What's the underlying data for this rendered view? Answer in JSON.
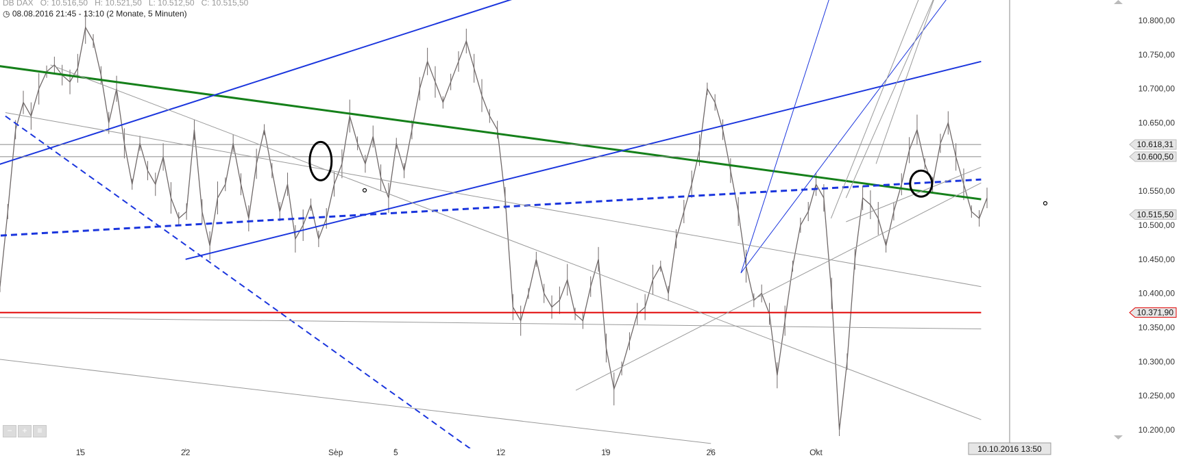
{
  "header": {
    "symbol": "DB DAX",
    "open": "O: 10.516,50",
    "high": "H: 10.521,50",
    "low": "L: 10.512,50",
    "close": "C: 10.515,50",
    "range": "08.08.2016 21:45 - 13:10 (2 Monate, 5 Minuten)"
  },
  "controls": {
    "zoom_out": "−",
    "zoom_in": "+",
    "zoom_menu": "≡"
  },
  "chart_data": {
    "type": "line",
    "title": "",
    "xlabel": "",
    "ylabel": "",
    "y_axis_labels": [
      "10.800,00",
      "10.750,00",
      "10.700,00",
      "10.650,00",
      "10.600,00",
      "10.550,00",
      "10.500,00",
      "10.450,00",
      "10.400,00",
      "10.350,00",
      "10.300,00",
      "10.250,00",
      "10.200,00"
    ],
    "y_axis_values": [
      10800,
      10750,
      10700,
      10650,
      10600,
      10550,
      10500,
      10450,
      10400,
      10350,
      10300,
      10250,
      10200
    ],
    "ylim": [
      10182,
      10827
    ],
    "x_axis_labels": [
      "15",
      "22",
      "Sep",
      "5",
      "12",
      "19",
      "26",
      "Okt"
    ],
    "x_axis_dates": [
      "2016-08-15",
      "2016-08-22",
      "2016-09-01",
      "2016-09-05",
      "2016-09-12",
      "2016-09-19",
      "2016-09-26",
      "2016-10-03"
    ],
    "grid": false,
    "crosshair_label": "10.10.2016 13:50",
    "price_markers": [
      {
        "label": "10.618,31",
        "value": 10618.31,
        "color": "#777777"
      },
      {
        "label": "10.600,50",
        "value": 10600.5,
        "color": "#777777"
      },
      {
        "label": "10.515,50",
        "value": 10515.5,
        "color": "#aaaaaa"
      },
      {
        "label": "10.371,90",
        "value": 10371.9,
        "color": "#e00000"
      }
    ],
    "series": [
      {
        "values": [
          10410,
          10520,
          10640,
          10680,
          10660,
          10700,
          10725,
          10735,
          10720,
          10710,
          10730,
          10790,
          10770,
          10720,
          10650,
          10700,
          10620,
          10560,
          10620,
          10580,
          10560,
          10600,
          10540,
          10510,
          10520,
          10640,
          10520,
          10470,
          10540,
          10560,
          10620,
          10560,
          10510,
          10590,
          10640,
          10580,
          10520,
          10560,
          10480,
          10500,
          10530,
          10480,
          10510,
          10560,
          10590,
          10660,
          10620,
          10590,
          10630,
          10570,
          10540,
          10620,
          10580,
          10640,
          10700,
          10740,
          10710,
          10680,
          10710,
          10740,
          10770,
          10730,
          10690,
          10660,
          10640,
          10540,
          10380,
          10360,
          10400,
          10450,
          10400,
          10380,
          10390,
          10420,
          10370,
          10360,
          10410,
          10450,
          10320,
          10260,
          10290,
          10330,
          10370,
          10380,
          10420,
          10440,
          10400,
          10480,
          10520,
          10560,
          10610,
          10700,
          10680,
          10640,
          10580,
          10520,
          10440,
          10390,
          10400,
          10370,
          10280,
          10360,
          10440,
          10500,
          10520,
          10560,
          10540,
          10400,
          10200,
          10300,
          10450,
          10540,
          10530,
          10510,
          10470,
          10520,
          10560,
          10610,
          10640,
          10590,
          10560,
          10620,
          10650,
          10600,
          10560,
          10520,
          10510,
          10540
        ]
      }
    ],
    "trendlines": [
      {
        "name": "green-resistance",
        "color": "#15801a",
        "style": "solid",
        "width": 3,
        "points": [
          [
            "2016-08-09",
            10735
          ],
          [
            "2016-10-14",
            10538
          ]
        ]
      },
      {
        "name": "blue-dashed-support",
        "color": "#1a35dd",
        "style": "dashed",
        "width": 3,
        "points": [
          [
            "2016-08-09",
            10484
          ],
          [
            "2016-10-14",
            10567
          ]
        ]
      },
      {
        "name": "blue-dashed-falling",
        "color": "#1a35dd",
        "style": "dashed",
        "width": 2,
        "points": [
          [
            "2016-08-10",
            10660
          ],
          [
            "2016-09-10",
            10172
          ]
        ]
      },
      {
        "name": "blue-channel-upper",
        "color": "#1a35dd",
        "style": "solid",
        "width": 2,
        "points": [
          [
            "2016-08-09",
            10585
          ],
          [
            "2016-09-14",
            10840
          ]
        ]
      },
      {
        "name": "blue-channel-lower",
        "color": "#1a35dd",
        "style": "solid",
        "width": 2,
        "points": [
          [
            "2016-08-22",
            10450
          ],
          [
            "2016-10-14",
            10740
          ]
        ]
      },
      {
        "name": "blue-steep-1",
        "color": "#1a35dd",
        "style": "solid",
        "width": 1,
        "points": [
          [
            "2016-09-28",
            10430
          ],
          [
            "2016-10-04",
            10840
          ]
        ]
      },
      {
        "name": "blue-steep-2",
        "color": "#1a35dd",
        "style": "solid",
        "width": 1,
        "points": [
          [
            "2016-09-28",
            10430
          ],
          [
            "2016-10-12",
            10840
          ]
        ]
      },
      {
        "name": "horizontal-red",
        "color": "#e00000",
        "style": "solid",
        "width": 2,
        "points": [
          [
            "2016-08-09",
            10371.9
          ],
          [
            "2016-10-14",
            10371.9
          ]
        ]
      },
      {
        "name": "horizontal-gray-1",
        "color": "#888888",
        "style": "solid",
        "width": 1,
        "points": [
          [
            "2016-08-09",
            10618.31
          ],
          [
            "2016-10-14",
            10618.31
          ]
        ]
      },
      {
        "name": "horizontal-gray-2",
        "color": "#888888",
        "style": "solid",
        "width": 1,
        "points": [
          [
            "2016-08-09",
            10600.5
          ],
          [
            "2016-10-14",
            10600.5
          ]
        ]
      },
      {
        "name": "gray-falling-1",
        "color": "#999999",
        "style": "solid",
        "width": 1,
        "points": [
          [
            "2016-08-10",
            10665
          ],
          [
            "2016-10-14",
            10410
          ]
        ]
      },
      {
        "name": "gray-falling-2",
        "color": "#999999",
        "style": "solid",
        "width": 1,
        "points": [
          [
            "2016-08-13",
            10735
          ],
          [
            "2016-10-14",
            10215
          ]
        ]
      },
      {
        "name": "gray-falling-3",
        "color": "#999999",
        "style": "solid",
        "width": 1,
        "points": [
          [
            "2016-08-09",
            10365
          ],
          [
            "2016-10-14",
            10348
          ]
        ]
      },
      {
        "name": "gray-falling-4",
        "color": "#999999",
        "style": "solid",
        "width": 1,
        "points": [
          [
            "2016-08-09",
            10305
          ],
          [
            "2016-09-26",
            10180
          ]
        ]
      },
      {
        "name": "gray-rising-1",
        "color": "#999999",
        "style": "solid",
        "width": 1,
        "points": [
          [
            "2016-09-17",
            10258
          ],
          [
            "2016-10-14",
            10562
          ]
        ]
      },
      {
        "name": "gray-rising-2",
        "color": "#999999",
        "style": "solid",
        "width": 1,
        "points": [
          [
            "2016-10-05",
            10505
          ],
          [
            "2016-10-14",
            10585
          ]
        ]
      },
      {
        "name": "gray-fan-1",
        "color": "#999999",
        "style": "solid",
        "width": 1,
        "points": [
          [
            "2016-10-04",
            10510
          ],
          [
            "2016-10-10",
            10840
          ]
        ]
      },
      {
        "name": "gray-fan-2",
        "color": "#999999",
        "style": "solid",
        "width": 1,
        "points": [
          [
            "2016-10-05",
            10540
          ],
          [
            "2016-10-11",
            10840
          ]
        ]
      },
      {
        "name": "gray-fan-3",
        "color": "#999999",
        "style": "solid",
        "width": 1,
        "points": [
          [
            "2016-10-07",
            10590
          ],
          [
            "2016-10-11",
            10840
          ]
        ]
      }
    ],
    "annotations": [
      {
        "type": "ellipse",
        "date": "2016-08-31",
        "value": 10594
      },
      {
        "type": "ellipse",
        "date": "2016-10-10",
        "value": 10561
      }
    ],
    "colors": {
      "candles": "#6f6868",
      "axis_label_bg": "#e6e6e6"
    }
  }
}
